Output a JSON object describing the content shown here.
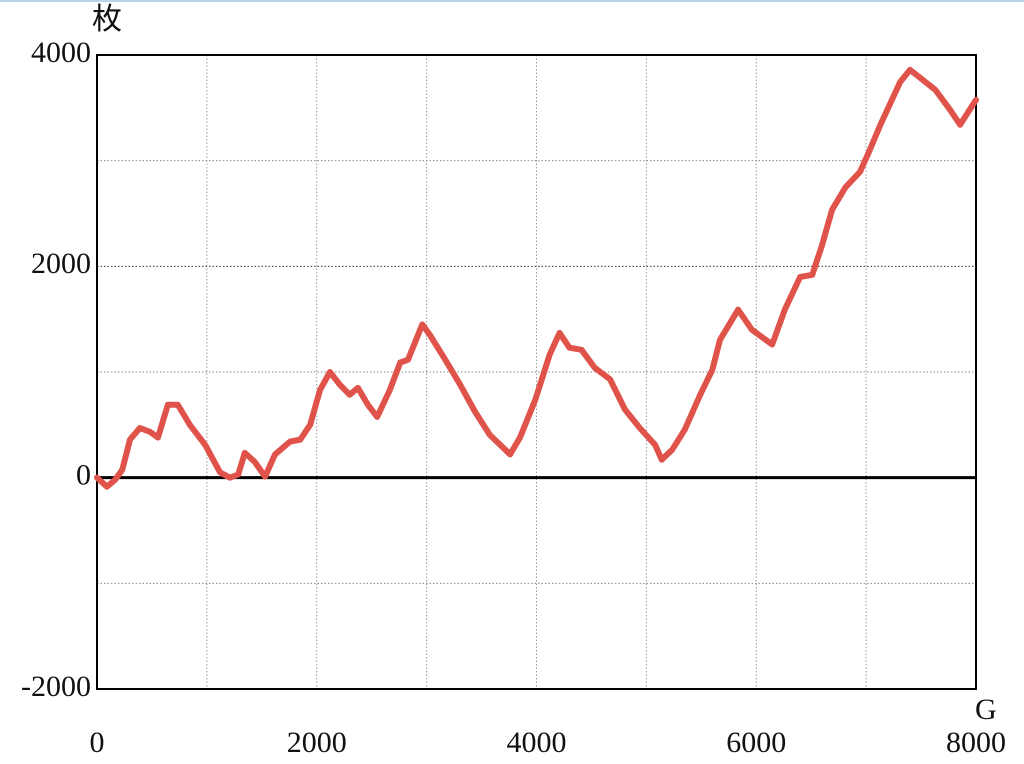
{
  "chart_data": {
    "type": "line",
    "y_label": "枚",
    "x_label": "G",
    "x": [
      0,
      90,
      165,
      230,
      300,
      390,
      480,
      555,
      645,
      735,
      845,
      985,
      1120,
      1210,
      1285,
      1345,
      1435,
      1530,
      1620,
      1755,
      1850,
      1940,
      2030,
      2120,
      2210,
      2300,
      2375,
      2465,
      2550,
      2665,
      2760,
      2830,
      2960,
      3030,
      3170,
      3305,
      3440,
      3575,
      3670,
      3760,
      3850,
      3990,
      4120,
      4210,
      4300,
      4410,
      4530,
      4670,
      4805,
      4940,
      5080,
      5140,
      5235,
      5350,
      5490,
      5600,
      5670,
      5835,
      5960,
      6145,
      6260,
      6400,
      6510,
      6600,
      6690,
      6810,
      6945,
      7035,
      7130,
      7310,
      7400,
      7630,
      7765,
      7855,
      8000
    ],
    "series": [
      {
        "color": "#e0534b",
        "values": [
          0,
          -85,
          -20,
          75,
          360,
          470,
          435,
          380,
          690,
          690,
          500,
          310,
          50,
          0,
          30,
          235,
          150,
          10,
          220,
          340,
          360,
          500,
          830,
          1000,
          880,
          785,
          850,
          690,
          575,
          830,
          1090,
          1115,
          1450,
          1350,
          1115,
          880,
          625,
          405,
          310,
          220,
          380,
          740,
          1165,
          1370,
          1230,
          1210,
          1040,
          930,
          645,
          470,
          310,
          170,
          265,
          455,
          785,
          1020,
          1305,
          1590,
          1400,
          1260,
          1590,
          1900,
          1920,
          2205,
          2535,
          2745,
          2895,
          3105,
          3340,
          3745,
          3860,
          3670,
          3480,
          3340,
          3575
        ]
      }
    ],
    "xlim": [
      0,
      8000
    ],
    "ylim": [
      -2000,
      4000
    ],
    "xticks": [
      0,
      2000,
      4000,
      6000,
      8000
    ],
    "yticks": [
      -2000,
      0,
      2000,
      4000
    ],
    "xminor": [
      1000,
      3000,
      5000,
      7000
    ],
    "yminor": [
      -1000,
      1000,
      3000
    ],
    "grid": true
  }
}
